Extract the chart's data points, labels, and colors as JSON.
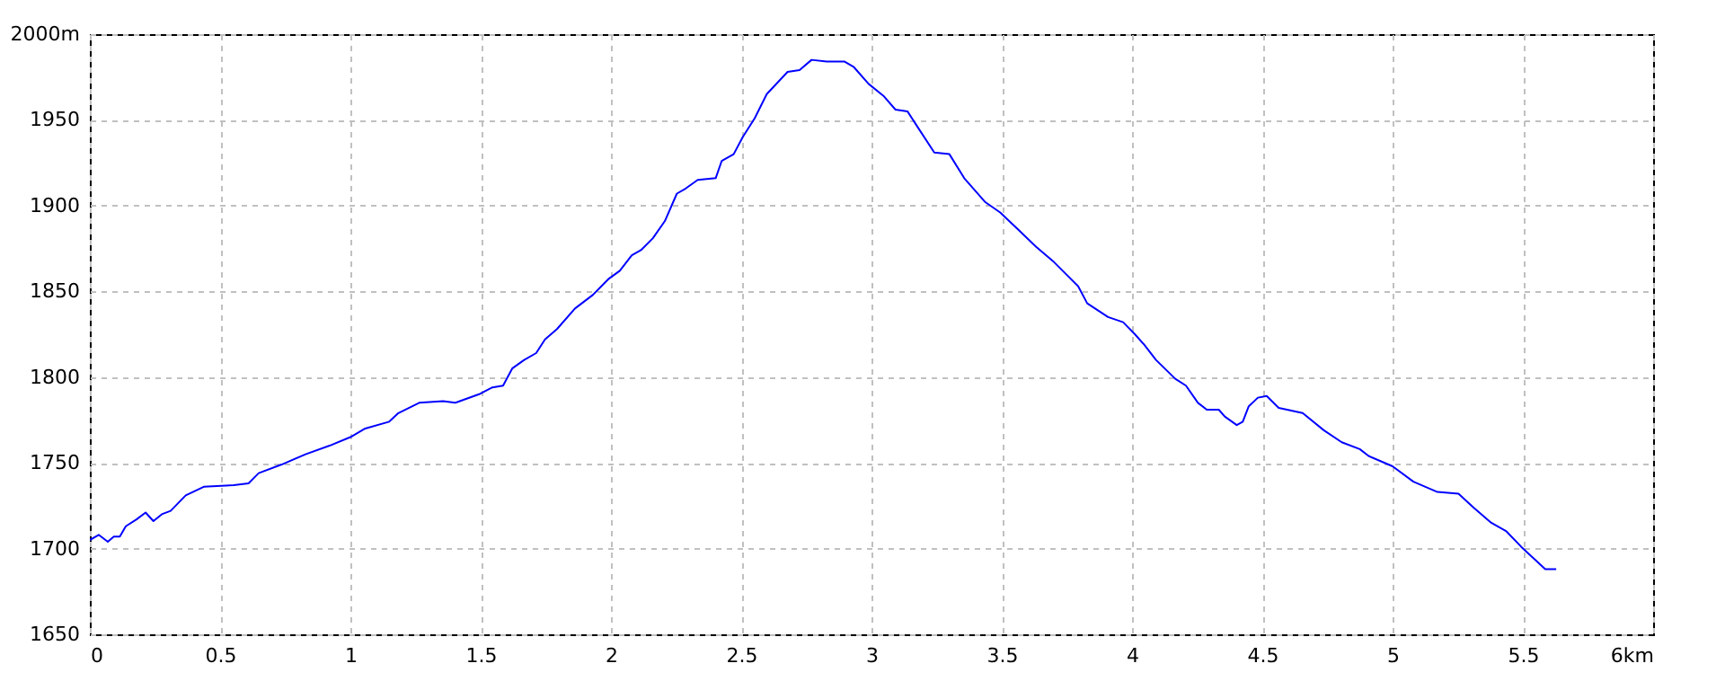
{
  "chart_data": {
    "type": "line",
    "x": [
      0,
      0.034,
      0.069,
      0.092,
      0.115,
      0.138,
      0.179,
      0.214,
      0.244,
      0.276,
      0.31,
      0.368,
      0.437,
      0.552,
      0.609,
      0.648,
      0.736,
      0.828,
      0.92,
      1.0,
      1.057,
      1.149,
      1.184,
      1.264,
      1.356,
      1.402,
      1.494,
      1.545,
      1.586,
      1.621,
      1.667,
      1.713,
      1.747,
      1.793,
      1.862,
      1.931,
      1.989,
      2.034,
      2.08,
      2.115,
      2.161,
      2.207,
      2.253,
      2.287,
      2.333,
      2.402,
      2.425,
      2.471,
      2.506,
      2.552,
      2.598,
      2.678,
      2.724,
      2.77,
      2.828,
      2.897,
      2.931,
      2.989,
      3.046,
      3.092,
      3.138,
      3.172,
      3.241,
      3.299,
      3.356,
      3.437,
      3.494,
      3.563,
      3.632,
      3.701,
      3.793,
      3.828,
      3.908,
      3.966,
      4.011,
      4.046,
      4.092,
      4.166,
      4.207,
      4.253,
      4.287,
      4.333,
      4.356,
      4.402,
      4.425,
      4.448,
      4.483,
      4.517,
      4.563,
      4.655,
      4.736,
      4.805,
      4.874,
      4.908,
      5.0,
      5.08,
      5.172,
      5.253,
      5.31,
      5.379,
      5.437,
      5.494,
      5.586,
      5.628
    ],
    "series": [
      {
        "color": "#0000ff",
        "values": [
          1705,
          1708,
          1704,
          1707,
          1707,
          1713,
          1717,
          1721,
          1716,
          1720,
          1722,
          1731,
          1736,
          1737,
          1738,
          1744,
          1749,
          1755,
          1760,
          1765,
          1770,
          1774,
          1779,
          1785,
          1786,
          1785,
          1790,
          1794,
          1795,
          1805,
          1810,
          1814,
          1822,
          1828,
          1840,
          1848,
          1857,
          1862,
          1871,
          1874,
          1881,
          1891,
          1907,
          1910,
          1915,
          1916,
          1926,
          1930,
          1940,
          1951,
          1965,
          1978,
          1979,
          1985,
          1984,
          1984,
          1981,
          1971,
          1964,
          1956,
          1955,
          1947,
          1931,
          1930,
          1916,
          1902,
          1896,
          1886,
          1876,
          1867,
          1853,
          1843,
          1835,
          1832,
          1825,
          1819,
          1810,
          1799,
          1795,
          1785,
          1781,
          1781,
          1777,
          1772,
          1774,
          1783,
          1788,
          1789,
          1782,
          1779,
          1769,
          1762,
          1758,
          1754,
          1748,
          1739,
          1733,
          1732,
          1724,
          1715,
          1710,
          1701,
          1688,
          1688
        ]
      }
    ],
    "xlim": [
      0,
      6
    ],
    "xticks": [
      0,
      0.5,
      1,
      1.5,
      2,
      2.5,
      3,
      3.5,
      4,
      4.5,
      5,
      5.5,
      {
        "value": 6,
        "label": "6km"
      }
    ],
    "ylim": [
      1650,
      2000
    ],
    "yticks": [
      1650,
      1700,
      1750,
      1800,
      1850,
      1900,
      1950,
      {
        "value": 2000,
        "label": "2000m"
      }
    ],
    "grid": true,
    "marker": "none",
    "line_style": "solid"
  }
}
